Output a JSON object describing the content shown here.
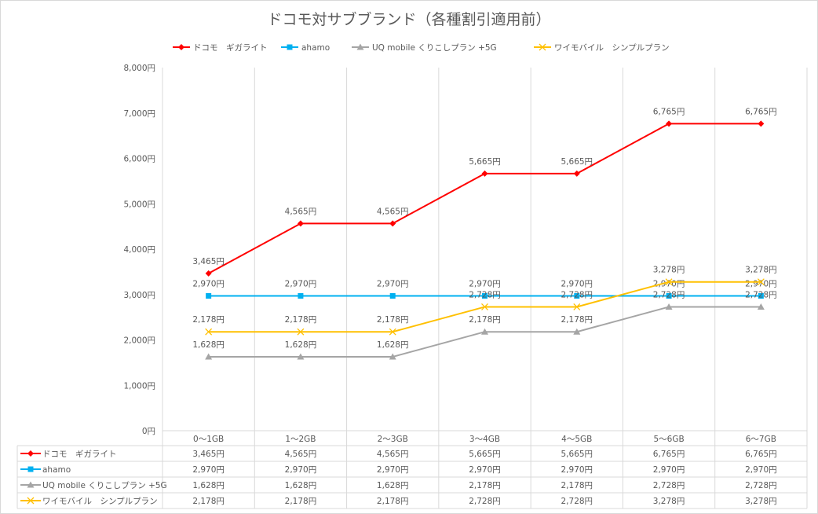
{
  "chart_data": {
    "type": "line",
    "title": "ドコモ対サブブランド（各種割引適用前）",
    "xlabel": "",
    "ylabel": "",
    "categories": [
      "0〜1GB",
      "1〜2GB",
      "2〜3GB",
      "3〜4GB",
      "4〜5GB",
      "5〜6GB",
      "6〜7GB"
    ],
    "ylim": [
      0,
      8000
    ],
    "yticks": [
      "0円",
      "1,000円",
      "2,000円",
      "3,000円",
      "4,000円",
      "5,000円",
      "6,000円",
      "7,000円",
      "8,000円"
    ],
    "grid": true,
    "legend": "top",
    "data_table": true,
    "series": [
      {
        "name": "ドコモ　ギガライト",
        "color": "#ff0000",
        "marker": "diamond",
        "values": [
          3465,
          4565,
          4565,
          5665,
          5665,
          6765,
          6765
        ],
        "labels": [
          "3,465円",
          "4,565円",
          "4,565円",
          "5,665円",
          "5,665円",
          "6,765円",
          "6,765円"
        ]
      },
      {
        "name": "ahamo",
        "color": "#00b0f0",
        "marker": "square",
        "values": [
          2970,
          2970,
          2970,
          2970,
          2970,
          2970,
          2970
        ],
        "labels": [
          "2,970円",
          "2,970円",
          "2,970円",
          "2,970円",
          "2,970円",
          "2,970円",
          "2,970円"
        ]
      },
      {
        "name": "UQ mobile くりこしプラン +5G",
        "color": "#a5a5a5",
        "marker": "triangle",
        "values": [
          1628,
          1628,
          1628,
          2178,
          2178,
          2728,
          2728
        ],
        "labels": [
          "1,628円",
          "1,628円",
          "1,628円",
          "2,178円",
          "2,178円",
          "2,728円",
          "2,728円"
        ]
      },
      {
        "name": "ワイモバイル　シンプルプラン",
        "color": "#ffc000",
        "marker": "x",
        "values": [
          2178,
          2178,
          2178,
          2728,
          2728,
          3278,
          3278
        ],
        "labels": [
          "2,178円",
          "2,178円",
          "2,178円",
          "2,728円",
          "2,728円",
          "3,278円",
          "3,278円"
        ]
      }
    ]
  }
}
